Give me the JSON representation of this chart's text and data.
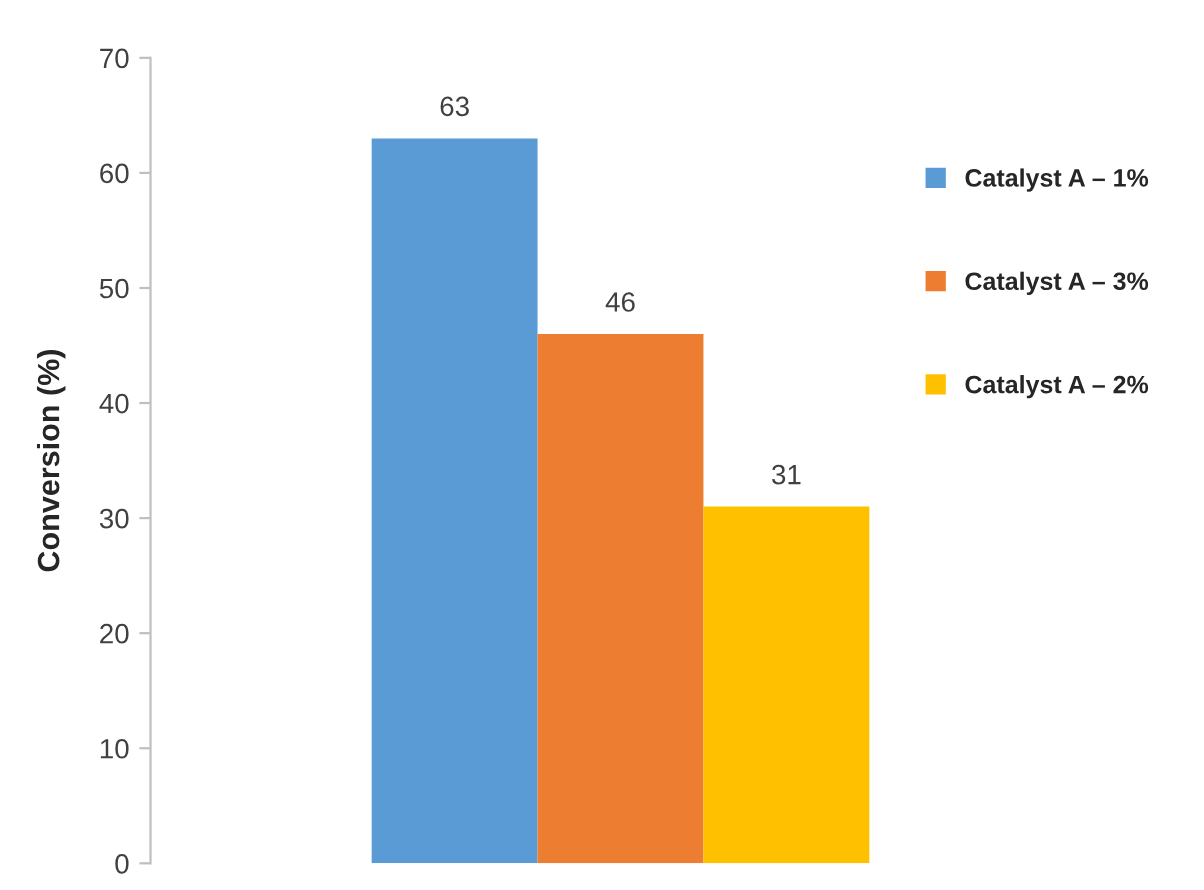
{
  "chart_data": {
    "type": "bar",
    "ylabel": "Conversion (%)",
    "categories": [
      null
    ],
    "series": [
      {
        "name": "Catalyst A – 1%",
        "color": "#5b9bd5",
        "values": [
          63
        ]
      },
      {
        "name": "Catalyst A – 3%",
        "color": "#ed7d31",
        "values": [
          46
        ]
      },
      {
        "name": "Catalyst A – 2%",
        "color": "#ffc000",
        "values": [
          31
        ]
      }
    ],
    "ylim": [
      0,
      70
    ],
    "yticks": [
      0,
      10,
      20,
      30,
      40,
      50,
      60,
      70
    ],
    "data_labels": true,
    "legend": "right",
    "grid": false
  }
}
